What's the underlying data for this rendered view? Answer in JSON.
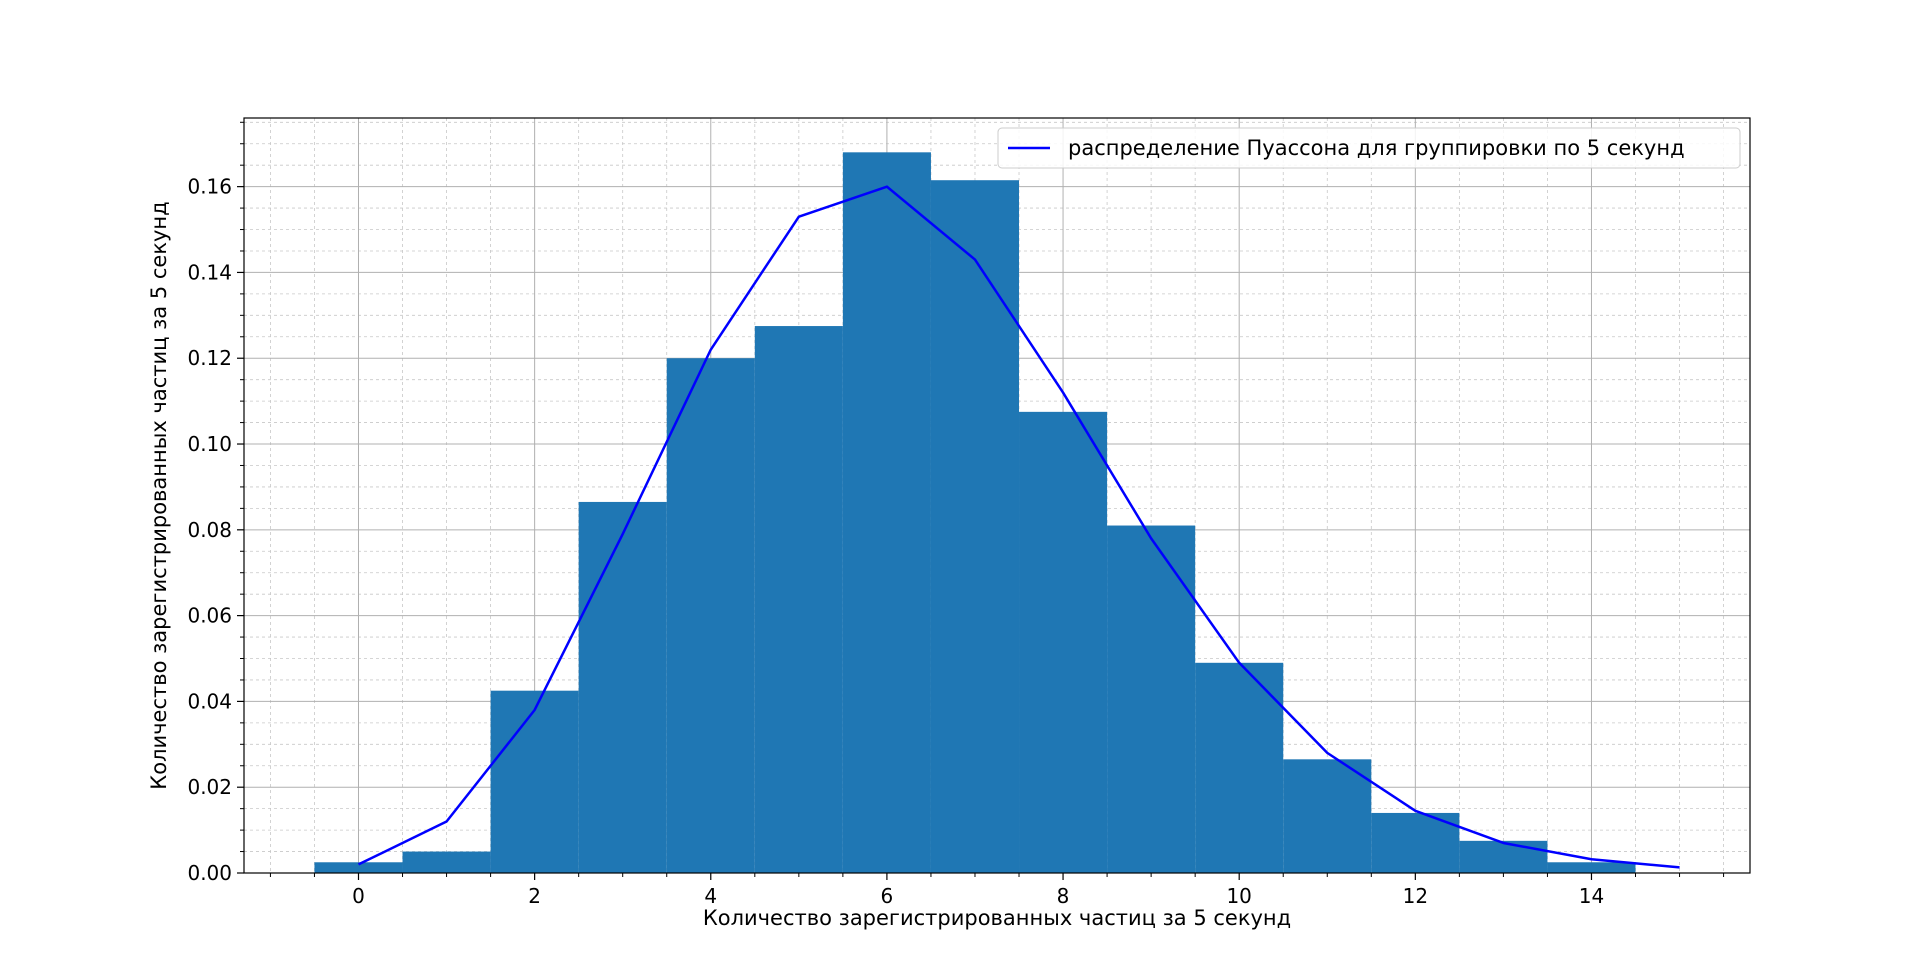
{
  "chart_data": {
    "type": "bar",
    "title": "",
    "xlabel": "Количество зарегистрированных частиц за 5 секунд",
    "ylabel": "Количество зарегистрированных частиц за 5 секунд",
    "xlim": [
      -1.3,
      15.8
    ],
    "ylim": [
      0.0,
      0.176
    ],
    "grid": {
      "major": true,
      "minor": true
    },
    "legend_position": "top-right",
    "x_ticks": [
      0,
      2,
      4,
      6,
      8,
      10,
      12,
      14
    ],
    "x_tick_labels": [
      "0",
      "2",
      "4",
      "6",
      "8",
      "10",
      "12",
      "14"
    ],
    "y_ticks": [
      0.0,
      0.02,
      0.04,
      0.06,
      0.08,
      0.1,
      0.12,
      0.14,
      0.16
    ],
    "y_tick_labels": [
      "0.00",
      "0.02",
      "0.04",
      "0.06",
      "0.08",
      "0.10",
      "0.12",
      "0.14",
      "0.16"
    ],
    "histogram": {
      "color": "#1f77b4",
      "bin_width": 1,
      "categories": [
        0,
        1,
        2,
        3,
        4,
        5,
        6,
        7,
        8,
        9,
        10,
        11,
        12,
        13,
        14
      ],
      "values": [
        0.0025,
        0.005,
        0.0425,
        0.0865,
        0.12,
        0.1275,
        0.168,
        0.1615,
        0.1075,
        0.081,
        0.049,
        0.0265,
        0.014,
        0.0075,
        0.0025
      ]
    },
    "series": [
      {
        "name": "распределение Пуассона для группировки по 5 секунд",
        "color": "#0000ff",
        "x": [
          0,
          1,
          2,
          3,
          4,
          5,
          6,
          7,
          8,
          9,
          10,
          11,
          12,
          13,
          14,
          15
        ],
        "y": [
          0.002,
          0.012,
          0.038,
          0.079,
          0.122,
          0.153,
          0.16,
          0.143,
          0.112,
          0.078,
          0.049,
          0.028,
          0.0145,
          0.007,
          0.0032,
          0.0013
        ]
      }
    ]
  }
}
